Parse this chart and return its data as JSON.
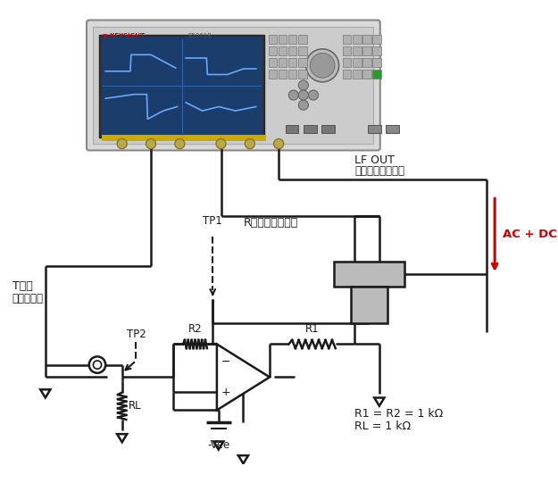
{
  "bg_color": "#ffffff",
  "line_color": "#1a1a1a",
  "red_color": "#cc0000",
  "gray_color": "#aaaaaa",
  "text_lf_out": "LF OUT",
  "text_lf_sub": "（直流偏置打开）",
  "text_r_channel": "R通道（高阻抗）",
  "text_t_channel": "T通道",
  "text_t_sub": "（高阻抗）",
  "text_ac_dc": "AC + DC",
  "text_tp1": "TP1",
  "text_tp2": "TP2",
  "text_r1": "R1",
  "text_r2": "R2",
  "text_rl": "RL",
  "text_vee": "-Vee",
  "text_formula1": "R1 = R2 = 1 kΩ",
  "text_formula2": "RL = 1 kΩ",
  "text_minus": "−",
  "text_plus": "+"
}
